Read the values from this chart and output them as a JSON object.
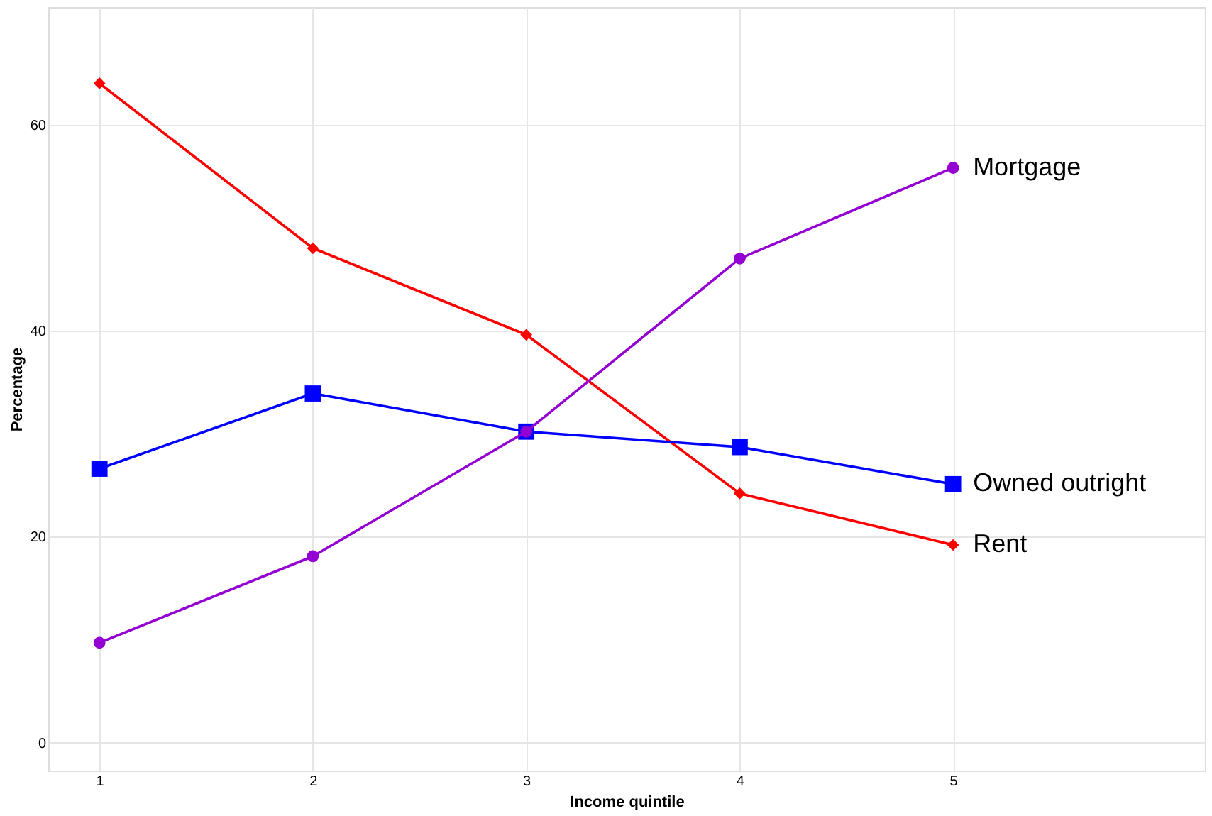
{
  "chart_data": {
    "type": "line",
    "xlabel": "Income quintile",
    "ylabel": "Percentage",
    "x": [
      1,
      2,
      3,
      4,
      5
    ],
    "series": [
      {
        "name": "Rent",
        "color": "#ff0000",
        "marker": "diamond",
        "values": [
          64,
          48,
          39.6,
          24.2,
          19.2
        ]
      },
      {
        "name": "Owned outright",
        "color": "#0000ff",
        "marker": "square",
        "values": [
          26.6,
          33.9,
          30.2,
          28.7,
          25.1
        ]
      },
      {
        "name": "Mortgage",
        "color": "#9400d3",
        "marker": "circle",
        "values": [
          9.7,
          18.1,
          30.2,
          47,
          55.8
        ]
      }
    ],
    "xlim": [
      0.76,
      6.18
    ],
    "xticks": [
      1,
      2,
      3,
      4,
      5
    ],
    "ylim": [
      -2.7,
      71.4
    ],
    "yticks": [
      0,
      20,
      40,
      60
    ],
    "grid": true,
    "legend": false,
    "line_style": "solid"
  }
}
